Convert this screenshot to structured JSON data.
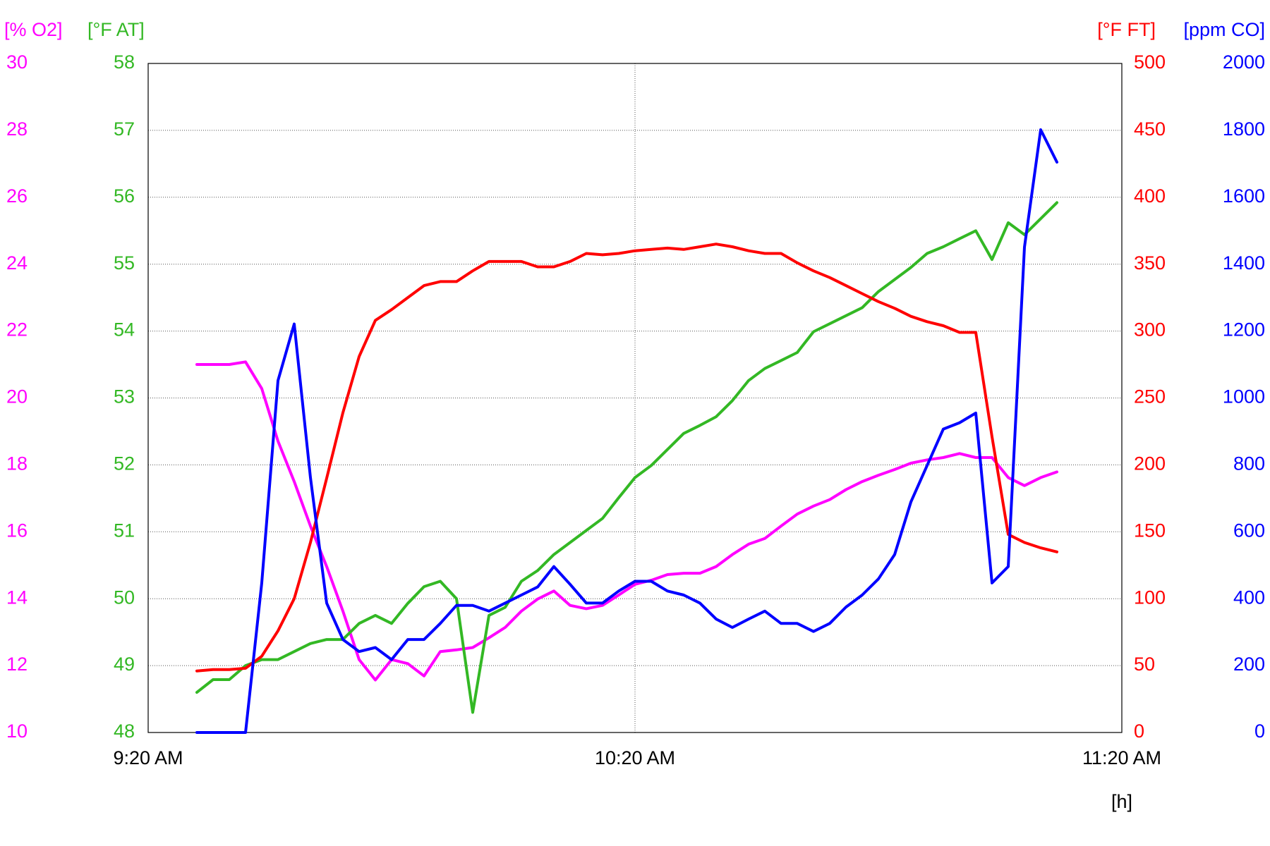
{
  "chart_data": {
    "type": "line",
    "x_label": "[h]",
    "xlim": [
      "9:20 AM",
      "11:20 AM"
    ],
    "xticks": [
      "9:20 AM",
      "10:20 AM",
      "11:20 AM"
    ],
    "grid": true,
    "axes": [
      {
        "label": "[% O2]",
        "color": "#ff00ff",
        "side": "left",
        "ylim": [
          10,
          30
        ],
        "yticks": [
          10,
          12,
          14,
          16,
          18,
          20,
          22,
          24,
          26,
          28,
          30
        ]
      },
      {
        "label": "[°F AT]",
        "color": "#33b824",
        "side": "left",
        "ylim": [
          48,
          58
        ],
        "yticks": [
          48,
          49,
          50,
          51,
          52,
          53,
          54,
          55,
          56,
          57,
          58
        ]
      },
      {
        "label": "[°F FT]",
        "color": "#ff0000",
        "side": "right",
        "ylim": [
          0,
          500
        ],
        "yticks": [
          0,
          50,
          100,
          150,
          200,
          250,
          300,
          350,
          400,
          450,
          500
        ]
      },
      {
        "label": "[ppm CO]",
        "color": "#0000ff",
        "side": "right",
        "ylim": [
          0,
          2000
        ],
        "yticks": [
          0,
          200,
          400,
          600,
          800,
          1000,
          1200,
          1400,
          1600,
          1800,
          2000
        ]
      }
    ],
    "x": [
      "9:26 AM",
      "9:28 AM",
      "9:30 AM",
      "9:32 AM",
      "9:34 AM",
      "9:36 AM",
      "9:38 AM",
      "9:40 AM",
      "9:42 AM",
      "9:44 AM",
      "9:46 AM",
      "9:48 AM",
      "9:50 AM",
      "9:52 AM",
      "9:54 AM",
      "9:56 AM",
      "9:58 AM",
      "10:00 AM",
      "10:02 AM",
      "10:04 AM",
      "10:06 AM",
      "10:08 AM",
      "10:10 AM",
      "10:12 AM",
      "10:14 AM",
      "10:16 AM",
      "10:18 AM",
      "10:20 AM",
      "10:22 AM",
      "10:24 AM",
      "10:26 AM",
      "10:28 AM",
      "10:30 AM",
      "10:32 AM",
      "10:34 AM",
      "10:36 AM",
      "10:38 AM",
      "10:40 AM",
      "10:42 AM",
      "10:44 AM",
      "10:46 AM",
      "10:48 AM",
      "10:50 AM",
      "10:52 AM",
      "10:54 AM",
      "10:56 AM",
      "10:58 AM",
      "11:00 AM",
      "11:02 AM",
      "11:04 AM",
      "11:06 AM",
      "11:08 AM",
      "11:10 AM",
      "11:12 AM"
    ],
    "series": [
      {
        "name": "O2",
        "axis": 0,
        "color": "#ff00ff",
        "values": [
          21.0,
          21.0,
          21.0,
          21.08,
          20.28,
          18.71,
          17.5,
          16.17,
          14.96,
          13.63,
          12.18,
          11.57,
          12.18,
          12.06,
          11.69,
          12.42,
          12.47,
          12.54,
          12.83,
          13.14,
          13.63,
          13.99,
          14.23,
          13.8,
          13.7,
          13.8,
          14.11,
          14.43,
          14.55,
          14.72,
          14.76,
          14.76,
          14.96,
          15.32,
          15.63,
          15.8,
          16.17,
          16.53,
          16.77,
          16.96,
          17.26,
          17.5,
          17.69,
          17.86,
          18.05,
          18.15,
          18.22,
          18.34,
          18.22,
          18.22,
          17.62,
          17.38,
          17.62,
          17.79
        ]
      },
      {
        "name": "AT",
        "axis": 1,
        "color": "#33b824",
        "values": [
          48.6,
          48.79,
          48.79,
          49.0,
          49.09,
          49.09,
          49.21,
          49.33,
          49.39,
          49.39,
          49.63,
          49.75,
          49.63,
          49.93,
          50.18,
          50.26,
          50.0,
          48.3,
          49.75,
          49.87,
          50.26,
          50.42,
          50.66,
          50.84,
          51.02,
          51.2,
          51.51,
          51.81,
          51.99,
          52.23,
          52.47,
          52.59,
          52.72,
          52.96,
          53.26,
          53.44,
          53.56,
          53.68,
          53.99,
          54.11,
          54.23,
          54.35,
          54.59,
          54.77,
          54.95,
          55.16,
          55.26,
          55.38,
          55.5,
          55.07,
          55.62,
          55.44,
          55.68,
          55.92
        ]
      },
      {
        "name": "FT",
        "axis": 2,
        "color": "#ff0000",
        "values": [
          46,
          47,
          47,
          48,
          57,
          76,
          100,
          142,
          190,
          239,
          281,
          308,
          316,
          325,
          334,
          337,
          337,
          345,
          352,
          352,
          352,
          348,
          348,
          352,
          358,
          357,
          358,
          360,
          361,
          362,
          361,
          363,
          365,
          363,
          360,
          358,
          358,
          351,
          345,
          340,
          334,
          328,
          322,
          317,
          311,
          307,
          304,
          299,
          299,
          221,
          148,
          142,
          138,
          135
        ]
      },
      {
        "name": "CO",
        "axis": 3,
        "color": "#0000ff",
        "values": [
          0,
          0,
          0,
          0,
          447,
          1052,
          1221,
          762,
          387,
          278,
          242,
          254,
          218,
          278,
          278,
          326,
          380,
          380,
          363,
          387,
          411,
          435,
          496,
          443,
          387,
          387,
          423,
          452,
          452,
          423,
          411,
          387,
          339,
          314,
          339,
          363,
          326,
          326,
          302,
          326,
          375,
          411,
          459,
          532,
          689,
          798,
          907,
          926,
          955,
          447,
          496,
          1451,
          1802,
          1705
        ]
      }
    ]
  }
}
